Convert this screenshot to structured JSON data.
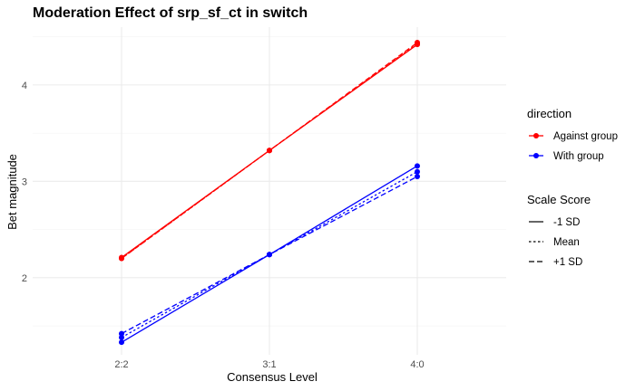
{
  "chart_data": {
    "type": "line",
    "title": "Moderation Effect of srp_sf_ct in switch",
    "xlabel": "Consensus Level",
    "ylabel": "Bet magnitude",
    "categories": [
      "2:2",
      "3:1",
      "4:0"
    ],
    "ylim": [
      1.2,
      4.6
    ],
    "yticks": [
      2,
      3,
      4
    ],
    "grid": true,
    "legend_placement": "right",
    "legend_color": {
      "title": "direction",
      "entries": [
        {
          "label": "Against group",
          "color": "#ff0000"
        },
        {
          "label": "With group",
          "color": "#0000ff"
        }
      ]
    },
    "legend_linetype": {
      "title": "Scale Score",
      "entries": [
        {
          "label": "-1 SD",
          "dash": "solid"
        },
        {
          "label": "Mean",
          "dash": "dotted"
        },
        {
          "label": "+1 SD",
          "dash": "dashed"
        }
      ]
    },
    "series": [
      {
        "direction": "Against group",
        "scale": "-1 SD",
        "color": "#ff0000",
        "dash": "solid",
        "values": [
          2.21,
          3.32,
          4.42
        ]
      },
      {
        "direction": "Against group",
        "scale": "Mean",
        "color": "#ff0000",
        "dash": "dotted",
        "values": [
          2.2,
          3.32,
          4.43
        ]
      },
      {
        "direction": "Against group",
        "scale": "+1 SD",
        "color": "#ff0000",
        "dash": "dashed",
        "values": [
          2.2,
          3.32,
          4.44
        ]
      },
      {
        "direction": "With group",
        "scale": "-1 SD",
        "color": "#0000ff",
        "dash": "solid",
        "values": [
          1.33,
          2.24,
          3.16
        ]
      },
      {
        "direction": "With group",
        "scale": "Mean",
        "color": "#0000ff",
        "dash": "dotted",
        "values": [
          1.38,
          2.24,
          3.1
        ]
      },
      {
        "direction": "With group",
        "scale": "+1 SD",
        "color": "#0000ff",
        "dash": "dashed",
        "values": [
          1.42,
          2.24,
          3.05
        ]
      }
    ]
  }
}
